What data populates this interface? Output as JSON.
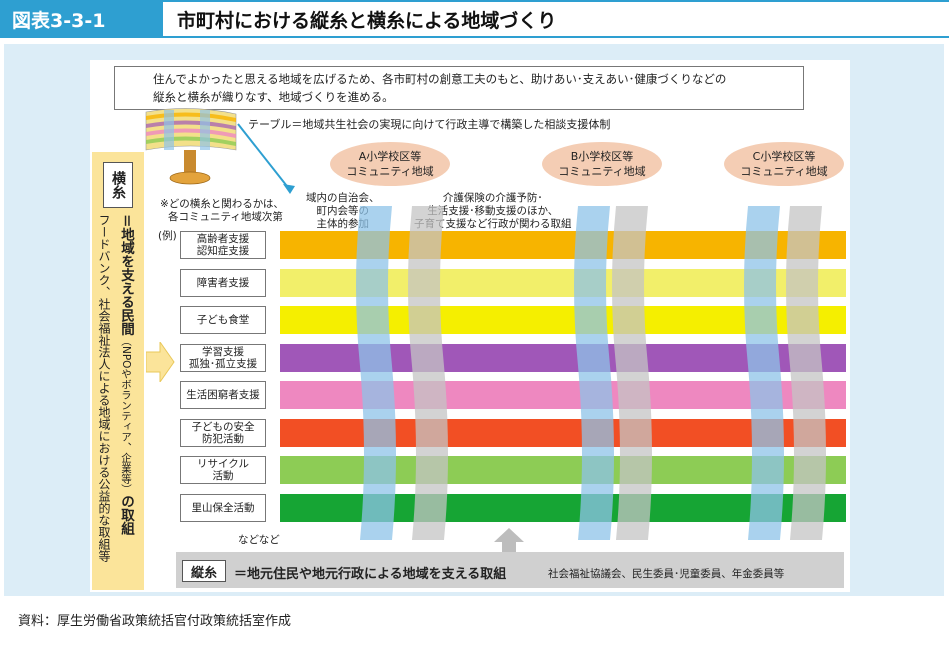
{
  "header": {
    "figure_label": "図表3-3-1",
    "title": "市町村における縦糸と横糸による地域づくり"
  },
  "intro": {
    "line1": "住んでよかったと思える地域を広げるため、各市町村の創意工夫のもと、助けあい･支えあい･健康づくりなどの",
    "line2": "縦糸と横糸が織りなす、地域づくりを進める。"
  },
  "table_note": "テーブル＝地域共生社会の実現に向けて行政主導で構築した相談支援体制",
  "districts": [
    {
      "line1": "A小学校区等",
      "line2": "コミュニティ地域"
    },
    {
      "line1": "B小学校区等",
      "line2": "コミュニティ地域"
    },
    {
      "line1": "C小学校区等",
      "line2": "コミュニティ地域"
    }
  ],
  "annotations": {
    "note_line1": "※どの横糸と関わるかは、",
    "note_line2": "各コミュニティ地域次第",
    "example": "(例)",
    "jichikai_line1": "域内の自治会、",
    "jichikai_line2": "町内会等の",
    "jichikai_line3": "主体的参加",
    "kaigo_line1": "介護保険の介護予防･",
    "kaigo_line2": "生活支援･移動支援のほか、",
    "kaigo_line3": "子育て支援など行政が関わる取組",
    "etc": "などなど"
  },
  "yokoito": {
    "badge": "横糸",
    "text_main": "＝地域を支える民間",
    "text_paren": "（NPOやボランティア、企業等）",
    "text_tail": "の取組",
    "text_sub": "フードバンク、社会福祉法人による地域における公益的な取組等"
  },
  "categories": [
    {
      "line1": "高齢者支援",
      "line2": "認知症支援",
      "color": "#f7b400"
    },
    {
      "line1": "障害者支援",
      "line2": "",
      "color": "#f2ef6a"
    },
    {
      "line1": "子ども食堂",
      "line2": "",
      "color": "#f5ef00"
    },
    {
      "line1": "学習支援",
      "line2": "孤独･孤立支援",
      "color": "#a057b8"
    },
    {
      "line1": "生活困窮者支援",
      "line2": "",
      "color": "#ee88c0"
    },
    {
      "line1": "子どもの安全",
      "line2": "防犯活動",
      "color": "#f24f24"
    },
    {
      "line1": "リサイクル",
      "line2": "活動",
      "color": "#8dcc55"
    },
    {
      "line1": "里山保全活動",
      "line2": "",
      "color": "#16a534"
    }
  ],
  "tateito": {
    "badge": "縦糸",
    "text": "＝地元住民や地元行政による地域を支える取組",
    "sub": "社会福祉協議会、民生委員･児童委員、年金委員等",
    "blue_color": "#8ec3e8",
    "gray_color": "#c4c4c4"
  },
  "source": "資料：厚生労働省政策統括官付政策統括室作成"
}
